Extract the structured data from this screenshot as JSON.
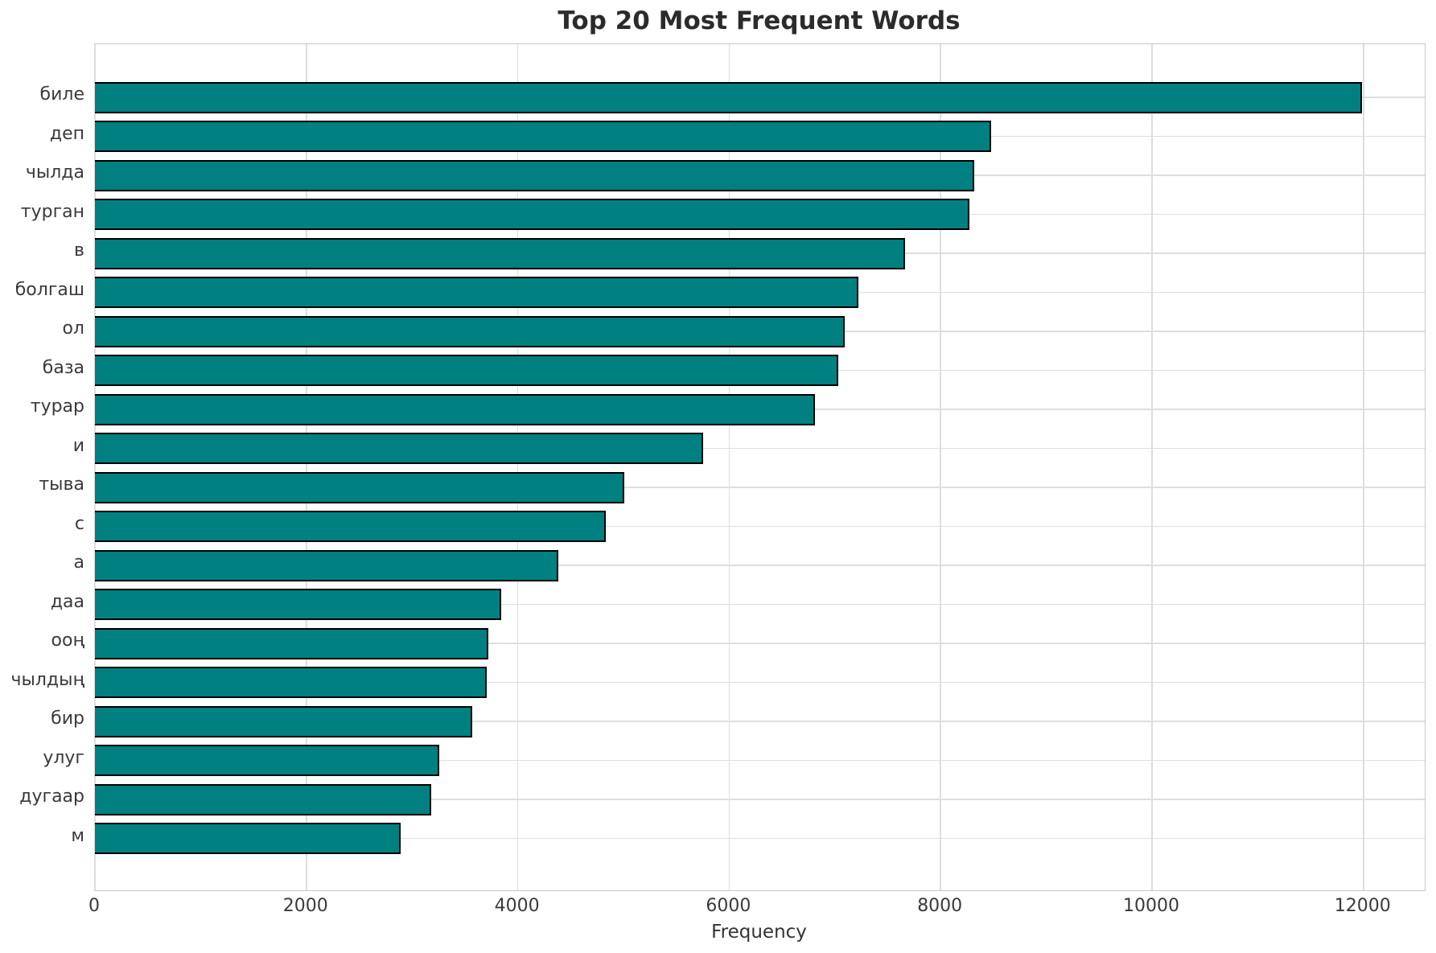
{
  "chart_data": {
    "type": "bar",
    "orientation": "horizontal",
    "title": "Top 20 Most Frequent Words",
    "xlabel": "Frequency",
    "ylabel": "",
    "categories": [
      "биле",
      "деп",
      "чылда",
      "турган",
      "в",
      "болгаш",
      "ол",
      "база",
      "турар",
      "и",
      "тыва",
      "с",
      "а",
      "даа",
      "ооң",
      "чылдың",
      "бир",
      "улуг",
      "дугаар",
      "м"
    ],
    "values": [
      11990,
      8480,
      8320,
      8270,
      7660,
      7220,
      7090,
      7030,
      6810,
      5750,
      5010,
      4830,
      4380,
      3840,
      3720,
      3710,
      3570,
      3260,
      3180,
      2890
    ],
    "x_ticks": [
      0,
      2000,
      4000,
      6000,
      8000,
      10000,
      12000
    ],
    "x_tick_labels": [
      "0",
      "2000",
      "4000",
      "6000",
      "8000",
      "10000",
      "12000"
    ],
    "xlim": [
      0,
      12580
    ],
    "grid": true,
    "legend": null,
    "bar_color": "#008080",
    "bar_edge_color": "#000000",
    "grid_color": "#dedede",
    "spine_color": "#c8c8c8",
    "title_color": "#2b2b2b",
    "tick_label_color": "#3a3a3a",
    "background": "#ffffff"
  }
}
